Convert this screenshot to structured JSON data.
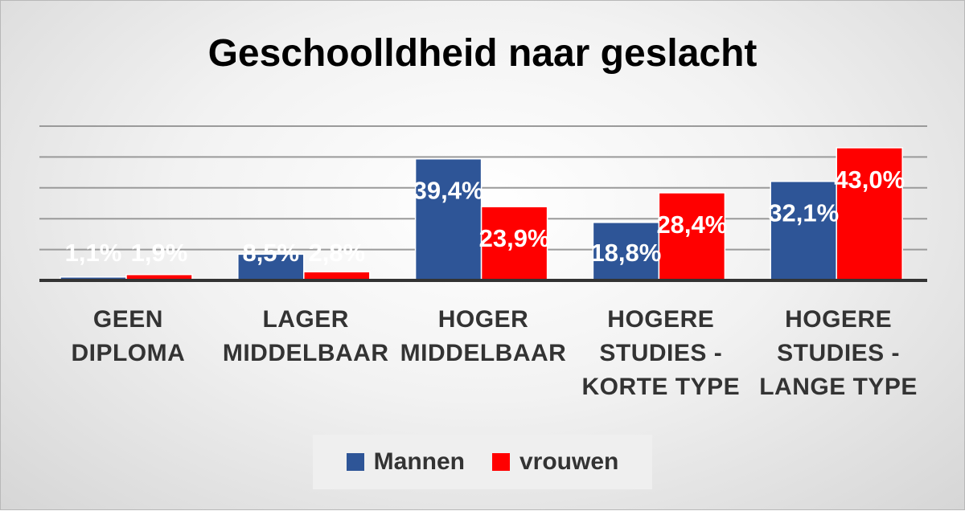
{
  "chart_data": {
    "type": "bar",
    "title": "Geschoolldheid naar geslacht",
    "categories": [
      [
        "GEEN",
        "DIPLOMA"
      ],
      [
        "LAGER",
        "MIDDELBAAR"
      ],
      [
        "HOGER",
        "MIDDELBAAR"
      ],
      [
        "HOGERE",
        "STUDIES -",
        "KORTE TYPE"
      ],
      [
        "HOGERE",
        "STUDIES -",
        "LANGE TYPE"
      ]
    ],
    "series": [
      {
        "name": "Mannen",
        "color": "#2E5597",
        "values": [
          1.1,
          8.5,
          39.4,
          18.8,
          32.1
        ],
        "labels": [
          "1,1%",
          "8,5%",
          "39,4%",
          "18,8%",
          "32,1%"
        ]
      },
      {
        "name": "vrouwen",
        "color": "#FF0000",
        "values": [
          1.9,
          2.8,
          23.9,
          28.4,
          43.0
        ],
        "labels": [
          "1,9%",
          "2,8%",
          "23,9%",
          "28,4%",
          "43,0%"
        ]
      }
    ],
    "ylim": [
      0,
      50
    ],
    "gridlines": true,
    "legend_position": "bottom",
    "data_label_color": "#FFFFFF"
  }
}
